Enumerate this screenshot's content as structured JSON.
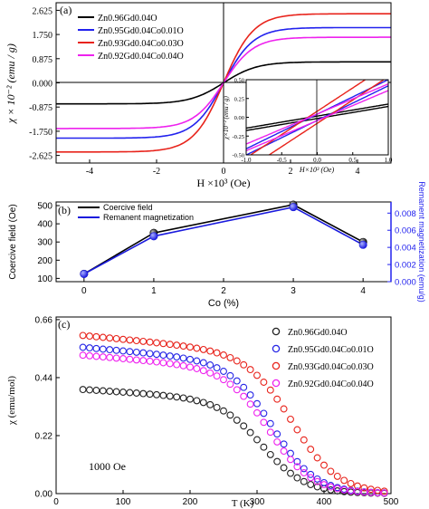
{
  "chart_data": [
    {
      "type": "line",
      "panel_label": "(a)",
      "xlabel": "H ×10³ (Oe)",
      "ylabel": "χ × 10⁻² (emu / g)",
      "xlim": [
        -5,
        5
      ],
      "ylim": [
        -2.9,
        2.9
      ],
      "xticks": [
        -4,
        -2,
        0,
        2,
        4
      ],
      "yticks": [
        "-2.625",
        "-1.750",
        "-0.875",
        "0.000",
        "0.875",
        "1.750",
        "2.625"
      ],
      "ytick_values": [
        -2.625,
        -1.75,
        -0.875,
        0,
        0.875,
        1.75,
        2.625
      ],
      "legend_position": "top-left",
      "series": [
        {
          "name": "Zn0.96Gd0.04O",
          "color": "#000000",
          "ms": 0.76,
          "h0": 1.0
        },
        {
          "name": "Zn0.95Gd0.04Co0.01O",
          "color": "#2222ee",
          "ms": 2.0,
          "h0": 0.9
        },
        {
          "name": "Zn0.93Gd0.04Co0.03O",
          "color": "#e8231b",
          "ms": 2.5,
          "h0": 0.9
        },
        {
          "name": "Zn0.92Gd0.04Co0.04O",
          "color": "#ee22ee",
          "ms": 1.65,
          "h0": 0.9
        }
      ],
      "inset": {
        "xlabel": "H×10³ (Oe)",
        "ylabel": "χ×10⁻² (emu / g)",
        "xlim": [
          -1.0,
          1.0
        ],
        "ylim": [
          -0.5,
          0.5
        ],
        "xticks": [
          "-1.0",
          "-0.5",
          "0.0",
          "0.5",
          "1.0"
        ],
        "xtick_values": [
          -1.0,
          -0.5,
          0.0,
          0.5,
          1.0
        ],
        "yticks": [
          "-0.50",
          "-0.25",
          "0.00",
          "0.25",
          "0.50"
        ],
        "ytick_values": [
          -0.5,
          -0.25,
          0,
          0.25,
          0.5
        ]
      }
    },
    {
      "type": "line",
      "panel_label": "(b)",
      "xlabel": "Co (%)",
      "ylabel": "Coercive field (Oe)",
      "y2label": "Remanent magnetization (emu/g)",
      "x": [
        0,
        1,
        3,
        4
      ],
      "xlim": [
        -0.4,
        4.4
      ],
      "ylim": [
        82,
        520
      ],
      "y2lim": [
        0,
        0.0093
      ],
      "xticks": [
        0,
        1,
        2,
        3,
        4
      ],
      "yticks": [
        100,
        200,
        300,
        400,
        500
      ],
      "y2ticks": [
        "0.000",
        "0.002",
        "0.004",
        "0.006",
        "0.008"
      ],
      "y2tick_values": [
        0,
        0.002,
        0.004,
        0.006,
        0.008
      ],
      "legend_position": "top-left",
      "series": [
        {
          "name": "Coercive field",
          "axis": "left",
          "color": "#000000",
          "values": [
            125,
            350,
            505,
            300
          ]
        },
        {
          "name": "Remanent magnetization",
          "axis": "right",
          "color": "#1a1add",
          "values": [
            0.0009,
            0.0053,
            0.0087,
            0.0043
          ]
        }
      ]
    },
    {
      "type": "scatter",
      "panel_label": "(c)",
      "xlabel": "T (K)",
      "ylabel": "χ (emu/mol)",
      "xlim": [
        0,
        500
      ],
      "ylim": [
        0.0,
        0.67
      ],
      "xticks": [
        0,
        100,
        200,
        300,
        400,
        500
      ],
      "yticks": [
        "0.00",
        "0.22",
        "0.44",
        "0.66"
      ],
      "ytick_values": [
        0,
        0.22,
        0.44,
        0.66
      ],
      "annotation": "1000 Oe",
      "legend_position": "top-right",
      "series": [
        {
          "name": "Zn0.96Gd0.04O",
          "color": "#222222",
          "c0": 0.395,
          "tc": 310,
          "w": 32
        },
        {
          "name": "Zn0.95Gd0.04Co0.01O",
          "color": "#2626e6",
          "c0": 0.555,
          "tc": 325,
          "w": 32
        },
        {
          "name": "Zn0.93Gd0.04Co0.03O",
          "color": "#e8231b",
          "c0": 0.6,
          "tc": 355,
          "w": 34
        },
        {
          "name": "Zn0.92Gd0.04Co0.04O",
          "color": "#ee22ee",
          "c0": 0.525,
          "tc": 320,
          "w": 32
        }
      ]
    }
  ]
}
